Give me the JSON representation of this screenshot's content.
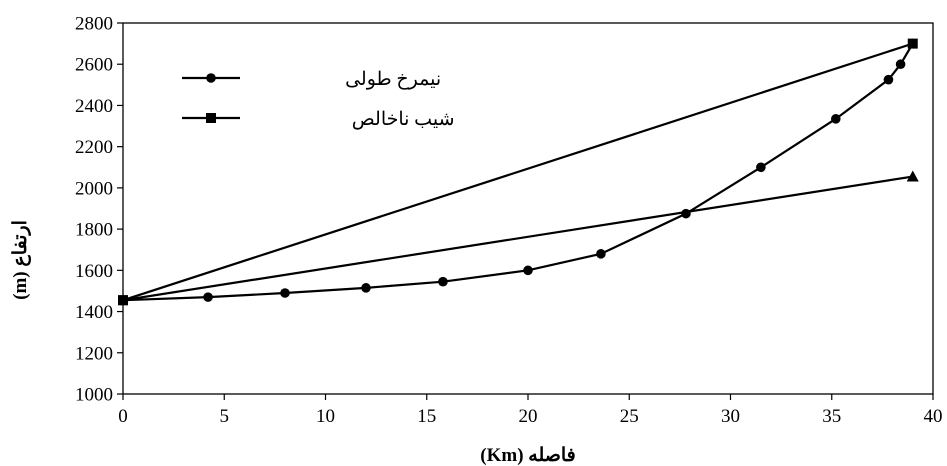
{
  "chart_data": {
    "type": "line",
    "title": "",
    "xlabel": "فاصله (Km)",
    "ylabel": "ارتفاع (m)",
    "xlim": [
      0,
      40
    ],
    "ylim": [
      1000,
      2800
    ],
    "x_ticks": [
      0,
      5,
      10,
      15,
      20,
      25,
      30,
      35,
      40
    ],
    "y_ticks": [
      1000,
      1200,
      1400,
      1600,
      1800,
      2000,
      2200,
      2400,
      2600,
      2800
    ],
    "grid": false,
    "legend_position": "top-left",
    "series": [
      {
        "name": "نیمرخ طولی",
        "marker": "circle",
        "color": "#000000",
        "points": [
          [
            0,
            1455
          ],
          [
            4.2,
            1470
          ],
          [
            8,
            1490
          ],
          [
            12,
            1515
          ],
          [
            15.8,
            1545
          ],
          [
            20,
            1600
          ],
          [
            23.6,
            1680
          ],
          [
            27.8,
            1875
          ],
          [
            31.5,
            2100
          ],
          [
            35.2,
            2335
          ],
          [
            37.8,
            2525
          ],
          [
            38.4,
            2600
          ],
          [
            39,
            2700
          ]
        ]
      },
      {
        "name": "شیب ناخالص",
        "marker": "square",
        "color": "#000000",
        "points": [
          [
            0,
            1455
          ],
          [
            39,
            2700
          ]
        ]
      },
      {
        "name": "",
        "marker": "triangle",
        "color": "#000000",
        "points": [
          [
            0,
            1455
          ],
          [
            39,
            2055
          ]
        ]
      }
    ]
  }
}
